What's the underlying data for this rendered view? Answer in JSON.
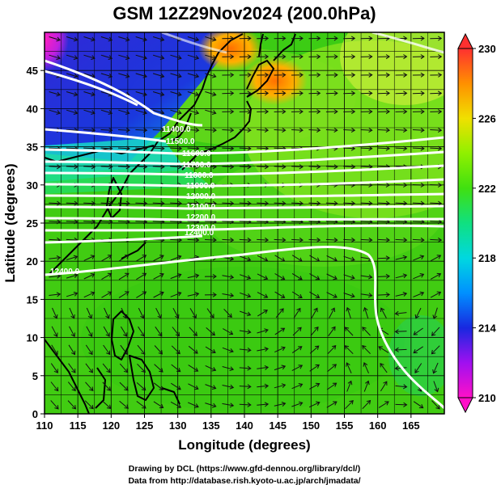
{
  "title": "GSM 12Z29Nov2024 (200.0hPa)",
  "x_axis": {
    "label": "Longitude (degrees)",
    "ticks": [
      "110",
      "115",
      "120",
      "125",
      "130",
      "135",
      "140",
      "145",
      "150",
      "155",
      "160",
      "165"
    ],
    "range": [
      110,
      170
    ]
  },
  "y_axis": {
    "label": "Latitude  (degrees)",
    "ticks": [
      "0",
      "5",
      "10",
      "15",
      "20",
      "25",
      "30",
      "35",
      "40",
      "45"
    ],
    "range": [
      0,
      50
    ]
  },
  "colorbar": {
    "ticks": [
      "210",
      "214",
      "218",
      "222",
      "226",
      "230"
    ],
    "range": [
      210,
      230
    ],
    "colors": [
      "#ff00cc",
      "#2020e0",
      "#00c8ff",
      "#10e0a0",
      "#40e000",
      "#b0ff00",
      "#ff9000",
      "#ff3030"
    ]
  },
  "contour_labels": [
    "11400.0",
    "11500.0",
    "11600.0",
    "11700.0",
    "11800.0",
    "11900.0",
    "12000.0",
    "12100.0",
    "12200.0",
    "12300.0",
    "12400.0",
    "12400.0"
  ],
  "credits": {
    "line1": "Drawing by DCL (https://www.gfd-dennou.org/library/dcl/)",
    "line2": "Data from http://database.rish.kyoto-u.ac.jp/arch/jmadata/"
  }
}
